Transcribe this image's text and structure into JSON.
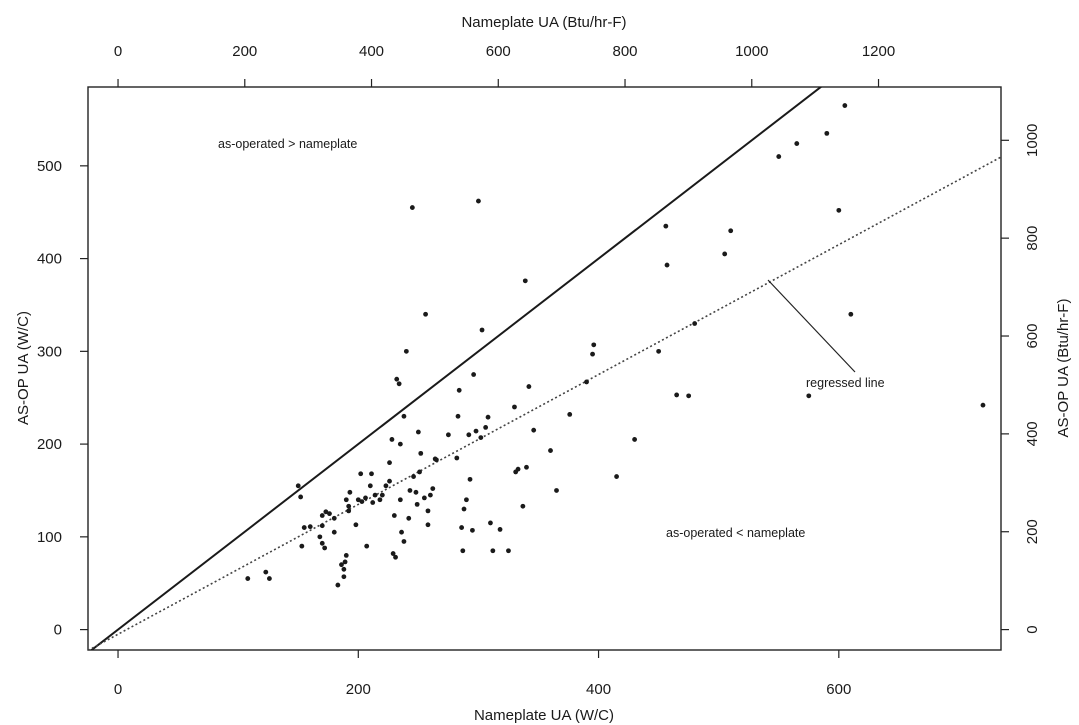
{
  "chart_data": {
    "type": "scatter",
    "title": "",
    "xlabel": "Nameplate UA (W/C)",
    "ylabel": "AS-OP UA (W/C)",
    "x2label": "Nameplate UA (Btu/hr-F)",
    "y2label": "AS-OP UA (Btu/hr-F)",
    "xlim": [
      -25,
      735
    ],
    "ylim": [
      -22,
      585
    ],
    "x_ticks": [
      0,
      200,
      400,
      600
    ],
    "y_ticks": [
      0,
      100,
      200,
      300,
      400,
      500
    ],
    "x2_ticks": [
      0,
      200,
      400,
      600,
      800,
      1000,
      1200
    ],
    "y2_ticks": [
      0,
      200,
      400,
      600,
      800,
      1000
    ],
    "x2_factor": 1.8956,
    "y2_factor": 1.8956,
    "grid": false,
    "annotations": {
      "upper_region": "as-operated > nameplate",
      "lower_region": "as-operated < nameplate",
      "regression": "regressed line"
    },
    "lines": [
      {
        "name": "as-operated = nameplate",
        "style": "solid",
        "x": [
          -25,
          600
        ],
        "y": [
          -25,
          600
        ]
      },
      {
        "name": "regressed line",
        "style": "dotted",
        "slope": 0.7,
        "intercept": -5
      }
    ],
    "points": [
      [
        108,
        55
      ],
      [
        123,
        62
      ],
      [
        126,
        55
      ],
      [
        150,
        155
      ],
      [
        152,
        143
      ],
      [
        155,
        110
      ],
      [
        153,
        90
      ],
      [
        160,
        111
      ],
      [
        170,
        112
      ],
      [
        168,
        100
      ],
      [
        170,
        93
      ],
      [
        172,
        88
      ],
      [
        170,
        123
      ],
      [
        173,
        127
      ],
      [
        176,
        125
      ],
      [
        180,
        120
      ],
      [
        180,
        105
      ],
      [
        183,
        48
      ],
      [
        186,
        70
      ],
      [
        188,
        65
      ],
      [
        188,
        57
      ],
      [
        189,
        73
      ],
      [
        190,
        80
      ],
      [
        192,
        128
      ],
      [
        190,
        140
      ],
      [
        192,
        133
      ],
      [
        193,
        148
      ],
      [
        198,
        113
      ],
      [
        200,
        140
      ],
      [
        202,
        168
      ],
      [
        203,
        138
      ],
      [
        206,
        142
      ],
      [
        207,
        90
      ],
      [
        210,
        155
      ],
      [
        211,
        168
      ],
      [
        212,
        137
      ],
      [
        214,
        145
      ],
      [
        218,
        140
      ],
      [
        220,
        145
      ],
      [
        226,
        180
      ],
      [
        223,
        155
      ],
      [
        226,
        160
      ],
      [
        228,
        205
      ],
      [
        230,
        123
      ],
      [
        229,
        82
      ],
      [
        231,
        78
      ],
      [
        232,
        270
      ],
      [
        234,
        265
      ],
      [
        235,
        200
      ],
      [
        235,
        140
      ],
      [
        238,
        230
      ],
      [
        240,
        300
      ],
      [
        236,
        105
      ],
      [
        238,
        95
      ],
      [
        242,
        120
      ],
      [
        243,
        150
      ],
      [
        245,
        455
      ],
      [
        246,
        165
      ],
      [
        248,
        148
      ],
      [
        249,
        135
      ],
      [
        250,
        213
      ],
      [
        251,
        170
      ],
      [
        252,
        190
      ],
      [
        256,
        340
      ],
      [
        255,
        142
      ],
      [
        258,
        113
      ],
      [
        258,
        128
      ],
      [
        260,
        145
      ],
      [
        262,
        152
      ],
      [
        264,
        184
      ],
      [
        265,
        183
      ],
      [
        275,
        210
      ],
      [
        282,
        185
      ],
      [
        283,
        230
      ],
      [
        284,
        258
      ],
      [
        286,
        110
      ],
      [
        287,
        85
      ],
      [
        288,
        130
      ],
      [
        290,
        140
      ],
      [
        292,
        210
      ],
      [
        293,
        162
      ],
      [
        295,
        107
      ],
      [
        296,
        275
      ],
      [
        298,
        214
      ],
      [
        300,
        462
      ],
      [
        302,
        207
      ],
      [
        303,
        323
      ],
      [
        306,
        218
      ],
      [
        308,
        229
      ],
      [
        310,
        115
      ],
      [
        312,
        85
      ],
      [
        318,
        108
      ],
      [
        325,
        85
      ],
      [
        330,
        240
      ],
      [
        331,
        170
      ],
      [
        333,
        173
      ],
      [
        337,
        133
      ],
      [
        339,
        376
      ],
      [
        340,
        175
      ],
      [
        342,
        262
      ],
      [
        346,
        215
      ],
      [
        360,
        193
      ],
      [
        365,
        150
      ],
      [
        376,
        232
      ],
      [
        390,
        267
      ],
      [
        395,
        297
      ],
      [
        396,
        307
      ],
      [
        415,
        165
      ],
      [
        430,
        205
      ],
      [
        450,
        300
      ],
      [
        456,
        435
      ],
      [
        457,
        393
      ],
      [
        465,
        253
      ],
      [
        475,
        252
      ],
      [
        480,
        330
      ],
      [
        505,
        405
      ],
      [
        510,
        430
      ],
      [
        550,
        510
      ],
      [
        565,
        524
      ],
      [
        575,
        252
      ],
      [
        590,
        535
      ],
      [
        600,
        452
      ],
      [
        605,
        565
      ],
      [
        610,
        340
      ],
      [
        720,
        242
      ]
    ]
  }
}
